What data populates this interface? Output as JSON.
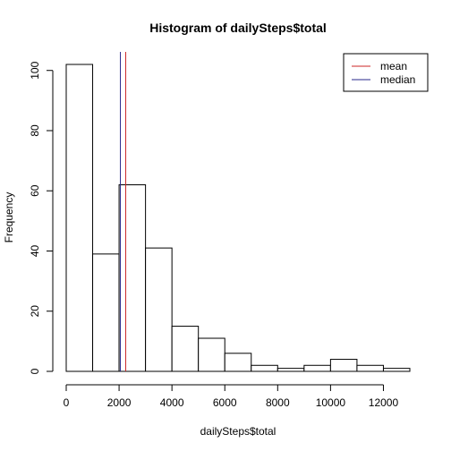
{
  "chart_data": {
    "type": "bar",
    "title": "Histogram of dailySteps$total",
    "xlabel": "dailySteps$total",
    "ylabel": "Frequency",
    "bins": [
      {
        "x0": 0,
        "x1": 1000,
        "count": 102
      },
      {
        "x0": 1000,
        "x1": 2000,
        "count": 39
      },
      {
        "x0": 2000,
        "x1": 3000,
        "count": 62
      },
      {
        "x0": 3000,
        "x1": 4000,
        "count": 41
      },
      {
        "x0": 4000,
        "x1": 5000,
        "count": 15
      },
      {
        "x0": 5000,
        "x1": 6000,
        "count": 11
      },
      {
        "x0": 6000,
        "x1": 7000,
        "count": 6
      },
      {
        "x0": 7000,
        "x1": 8000,
        "count": 2
      },
      {
        "x0": 8000,
        "x1": 9000,
        "count": 1
      },
      {
        "x0": 9000,
        "x1": 10000,
        "count": 2
      },
      {
        "x0": 10000,
        "x1": 11000,
        "count": 4
      },
      {
        "x0": 11000,
        "x1": 12000,
        "count": 2
      },
      {
        "x0": 12000,
        "x1": 13000,
        "count": 1
      }
    ],
    "xlim": [
      0,
      13000
    ],
    "ylim": [
      0,
      102
    ],
    "xticks": [
      0,
      2000,
      4000,
      6000,
      8000,
      10000,
      12000
    ],
    "yticks": [
      0,
      20,
      40,
      60,
      80,
      100
    ],
    "vlines": [
      {
        "name": "mean",
        "value": 2250,
        "color": "#cd2626"
      },
      {
        "name": "median",
        "value": 2050,
        "color": "#27278b"
      }
    ],
    "legend": {
      "position": "top-right",
      "entries": [
        {
          "label": "mean",
          "color": "#cd2626"
        },
        {
          "label": "median",
          "color": "#27278b"
        }
      ]
    },
    "grid": false
  }
}
